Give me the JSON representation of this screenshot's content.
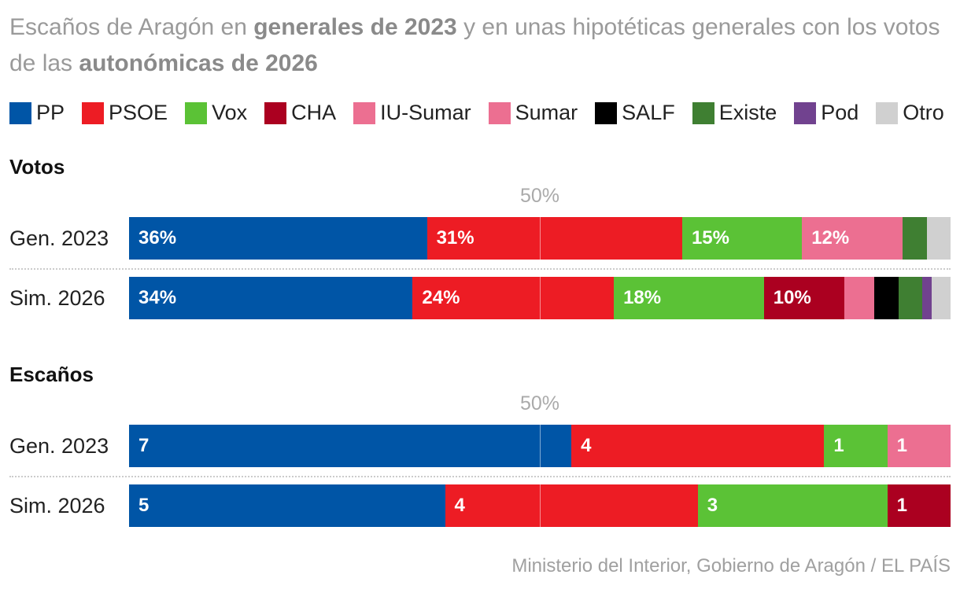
{
  "title": {
    "pre": "Escaños de Aragón en ",
    "b1": "generales de 2023",
    "mid": " y en unas hipotéticas generales con los votos de las ",
    "b2": "autonómicas de 2026"
  },
  "legend": [
    {
      "name": "PP",
      "color": "#0055a6"
    },
    {
      "name": "PSOE",
      "color": "#ed1c24"
    },
    {
      "name": "Vox",
      "color": "#5bc236"
    },
    {
      "name": "CHA",
      "color": "#ab0020"
    },
    {
      "name": "IU-Sumar",
      "color": "#ec6f91"
    },
    {
      "name": "Sumar",
      "color": "#ec6f91"
    },
    {
      "name": "SALF",
      "color": "#000000"
    },
    {
      "name": "Existe",
      "color": "#3f7f32"
    },
    {
      "name": "Pod",
      "color": "#71428f"
    },
    {
      "name": "Otro",
      "color": "#d0d0d0"
    }
  ],
  "source": "Ministerio del Interior, Gobierno de Aragón / EL PAÍS",
  "chart_data": [
    {
      "type": "bar",
      "stacked": true,
      "orientation": "horizontal",
      "title": "Votos",
      "reference_label": "50%",
      "unit": "%",
      "rows": [
        {
          "label": "Gen. 2023",
          "segments": [
            {
              "party": "PP",
              "value": 36.3,
              "label": "36%"
            },
            {
              "party": "PSOE",
              "value": 31.1,
              "label": "31%"
            },
            {
              "party": "Vox",
              "value": 14.6,
              "label": "15%"
            },
            {
              "party": "Sumar",
              "value": 12.3,
              "label": "12%"
            },
            {
              "party": "Existe",
              "value": 2.9,
              "label": ""
            },
            {
              "party": "Otro",
              "value": 2.9,
              "label": ""
            }
          ]
        },
        {
          "label": "Sim. 2026",
          "segments": [
            {
              "party": "PP",
              "value": 34.4,
              "label": "34%"
            },
            {
              "party": "PSOE",
              "value": 24.4,
              "label": "24%"
            },
            {
              "party": "Vox",
              "value": 18.2,
              "label": "18%"
            },
            {
              "party": "CHA",
              "value": 9.8,
              "label": "10%"
            },
            {
              "party": "IU-Sumar",
              "value": 3.6,
              "label": ""
            },
            {
              "party": "SALF",
              "value": 2.9,
              "label": ""
            },
            {
              "party": "Existe",
              "value": 2.9,
              "label": ""
            },
            {
              "party": "Pod",
              "value": 1.1,
              "label": ""
            },
            {
              "party": "Otro",
              "value": 2.3,
              "label": ""
            }
          ]
        }
      ]
    },
    {
      "type": "bar",
      "stacked": true,
      "orientation": "horizontal",
      "title": "Escaños",
      "reference_label": "50%",
      "rows": [
        {
          "label": "Gen. 2023",
          "segments": [
            {
              "party": "PP",
              "value": 7,
              "label": "7"
            },
            {
              "party": "PSOE",
              "value": 4,
              "label": "4"
            },
            {
              "party": "Vox",
              "value": 1,
              "label": "1"
            },
            {
              "party": "Sumar",
              "value": 1,
              "label": "1"
            }
          ]
        },
        {
          "label": "Sim. 2026",
          "segments": [
            {
              "party": "PP",
              "value": 5,
              "label": "5"
            },
            {
              "party": "PSOE",
              "value": 4,
              "label": "4"
            },
            {
              "party": "Vox",
              "value": 3,
              "label": "3"
            },
            {
              "party": "CHA",
              "value": 1,
              "label": "1"
            }
          ]
        }
      ]
    }
  ]
}
